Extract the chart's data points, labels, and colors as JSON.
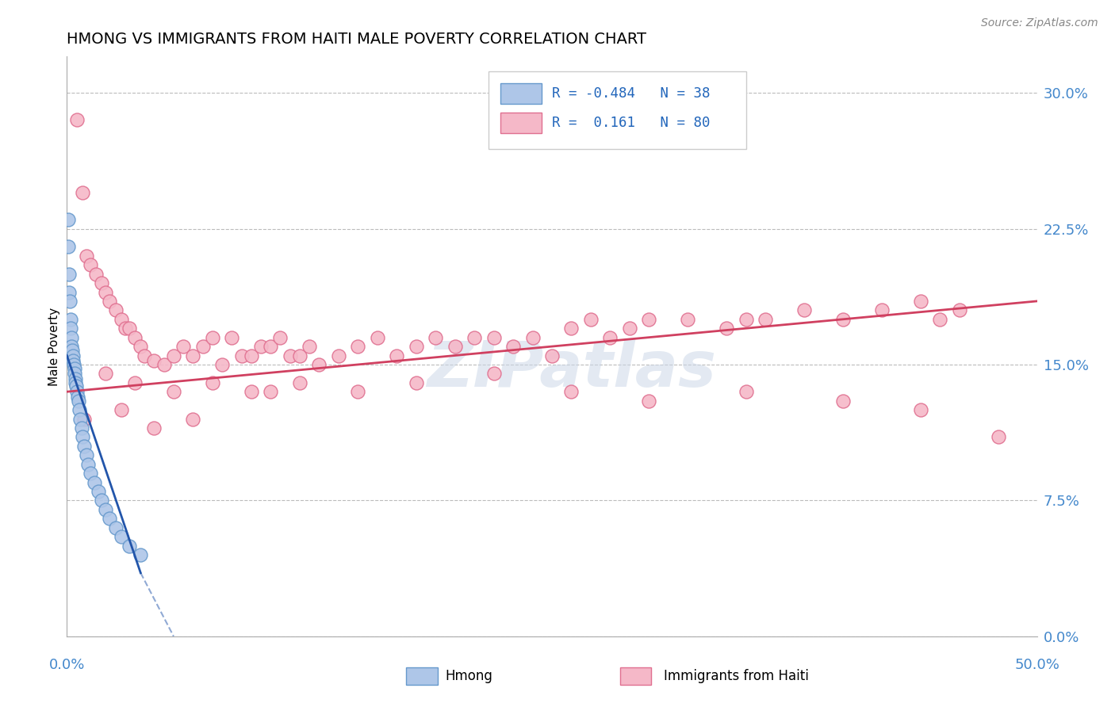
{
  "title": "HMONG VS IMMIGRANTS FROM HAITI MALE POVERTY CORRELATION CHART",
  "source": "Source: ZipAtlas.com",
  "ylabel": "Male Poverty",
  "ylabel_tick_vals": [
    0.0,
    7.5,
    15.0,
    22.5,
    30.0
  ],
  "xlim": [
    0.0,
    50.0
  ],
  "ylim": [
    0.0,
    32.0
  ],
  "legend_R_hmong": "-0.484",
  "legend_N_hmong": "38",
  "legend_R_haiti": "0.161",
  "legend_N_haiti": "80",
  "hmong_color": "#aec6e8",
  "haiti_color": "#f5b8c8",
  "hmong_edge": "#6699cc",
  "haiti_edge": "#e07090",
  "trendline_hmong_color": "#2255aa",
  "trendline_haiti_color": "#d04060",
  "background_color": "#ffffff",
  "watermark": "ZIPatlas",
  "hmong_x": [
    0.05,
    0.08,
    0.1,
    0.12,
    0.15,
    0.18,
    0.2,
    0.22,
    0.25,
    0.28,
    0.3,
    0.32,
    0.35,
    0.38,
    0.4,
    0.42,
    0.45,
    0.48,
    0.5,
    0.55,
    0.6,
    0.65,
    0.7,
    0.75,
    0.8,
    0.9,
    1.0,
    1.1,
    1.2,
    1.4,
    1.6,
    1.8,
    2.0,
    2.2,
    2.5,
    2.8,
    3.2,
    3.8
  ],
  "hmong_y": [
    23.0,
    21.5,
    20.0,
    19.0,
    18.5,
    17.5,
    17.0,
    16.5,
    16.0,
    15.8,
    15.5,
    15.2,
    15.0,
    14.8,
    14.5,
    14.2,
    14.0,
    13.8,
    13.5,
    13.2,
    13.0,
    12.5,
    12.0,
    11.5,
    11.0,
    10.5,
    10.0,
    9.5,
    9.0,
    8.5,
    8.0,
    7.5,
    7.0,
    6.5,
    6.0,
    5.5,
    5.0,
    4.5
  ],
  "haiti_x": [
    0.5,
    0.8,
    1.0,
    1.2,
    1.5,
    1.8,
    2.0,
    2.2,
    2.5,
    2.8,
    3.0,
    3.2,
    3.5,
    3.8,
    4.0,
    4.5,
    5.0,
    5.5,
    6.0,
    6.5,
    7.0,
    7.5,
    8.0,
    8.5,
    9.0,
    9.5,
    10.0,
    10.5,
    11.0,
    11.5,
    12.0,
    12.5,
    13.0,
    14.0,
    15.0,
    16.0,
    17.0,
    18.0,
    19.0,
    20.0,
    21.0,
    22.0,
    23.0,
    24.0,
    25.0,
    26.0,
    27.0,
    28.0,
    29.0,
    30.0,
    32.0,
    34.0,
    35.0,
    36.0,
    38.0,
    40.0,
    42.0,
    44.0,
    45.0,
    46.0,
    2.0,
    3.5,
    5.5,
    7.5,
    9.5,
    12.0,
    15.0,
    18.0,
    22.0,
    26.0,
    30.0,
    35.0,
    40.0,
    44.0,
    48.0,
    0.9,
    2.8,
    4.5,
    6.5,
    10.5
  ],
  "haiti_y": [
    28.5,
    24.5,
    21.0,
    20.5,
    20.0,
    19.5,
    19.0,
    18.5,
    18.0,
    17.5,
    17.0,
    17.0,
    16.5,
    16.0,
    15.5,
    15.2,
    15.0,
    15.5,
    16.0,
    15.5,
    16.0,
    16.5,
    15.0,
    16.5,
    15.5,
    15.5,
    16.0,
    16.0,
    16.5,
    15.5,
    15.5,
    16.0,
    15.0,
    15.5,
    16.0,
    16.5,
    15.5,
    16.0,
    16.5,
    16.0,
    16.5,
    16.5,
    16.0,
    16.5,
    15.5,
    17.0,
    17.5,
    16.5,
    17.0,
    17.5,
    17.5,
    17.0,
    17.5,
    17.5,
    18.0,
    17.5,
    18.0,
    18.5,
    17.5,
    18.0,
    14.5,
    14.0,
    13.5,
    14.0,
    13.5,
    14.0,
    13.5,
    14.0,
    14.5,
    13.5,
    13.0,
    13.5,
    13.0,
    12.5,
    11.0,
    12.0,
    12.5,
    11.5,
    12.0,
    13.5
  ],
  "hmong_trendline_x0": 0.0,
  "hmong_trendline_y0": 15.5,
  "hmong_trendline_x1": 3.8,
  "hmong_trendline_y1": 3.5,
  "hmong_dash_x0": 3.8,
  "hmong_dash_y0": 3.5,
  "hmong_dash_x1": 5.5,
  "hmong_dash_y1": 0.0,
  "haiti_trendline_x0": 0.0,
  "haiti_trendline_y0": 13.5,
  "haiti_trendline_x1": 50.0,
  "haiti_trendline_y1": 18.5
}
